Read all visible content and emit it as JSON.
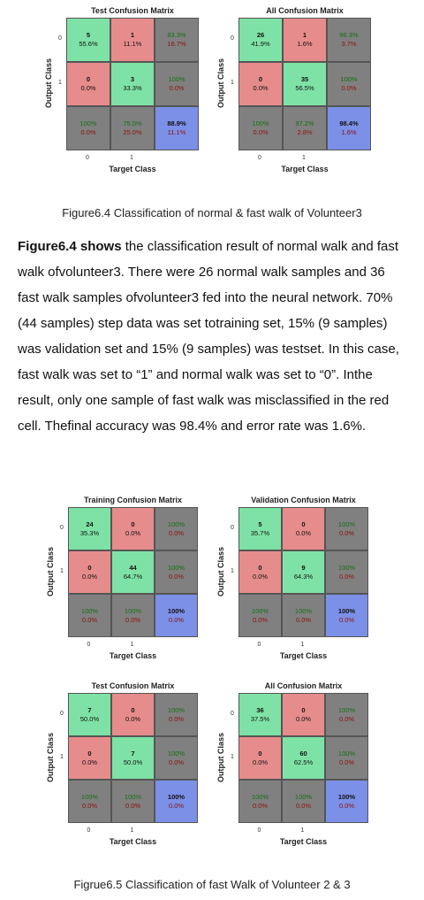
{
  "figures": [
    {
      "caption": "Figure6.4 Classification of normal & fast walk of Volunteer3",
      "matrices": [
        {
          "title": "Test Confusion Matrix",
          "ylabel": "Output Class",
          "xlabel": "Target Class",
          "yticks": [
            "0",
            "1"
          ],
          "xticks": [
            "0",
            "1"
          ],
          "cells": [
            [
              [
                "5",
                "55.6%"
              ],
              [
                "1",
                "11.1%"
              ],
              [
                "83.3%",
                "16.7%"
              ]
            ],
            [
              [
                "0",
                "0.0%"
              ],
              [
                "3",
                "33.3%"
              ],
              [
                "100%",
                "0.0%"
              ]
            ],
            [
              [
                "100%",
                "0.0%"
              ],
              [
                "75.0%",
                "25.0%"
              ],
              [
                "88.9%",
                "11.1%"
              ]
            ]
          ]
        },
        {
          "title": "All Confusion Matrix",
          "ylabel": "Output Class",
          "xlabel": "Target Class",
          "yticks": [
            "0",
            "1"
          ],
          "xticks": [
            "0",
            "1"
          ],
          "cells": [
            [
              [
                "26",
                "41.9%"
              ],
              [
                "1",
                "1.6%"
              ],
              [
                "96.3%",
                "3.7%"
              ]
            ],
            [
              [
                "0",
                "0.0%"
              ],
              [
                "35",
                "56.5%"
              ],
              [
                "100%",
                "0.0%"
              ]
            ],
            [
              [
                "100%",
                "0.0%"
              ],
              [
                "97.2%",
                "2.8%"
              ],
              [
                "98.4%",
                "1.6%"
              ]
            ]
          ]
        }
      ]
    },
    {
      "caption": "Figrue6.5 Classification of fast Walk of Volunteer 2 & 3",
      "matrices": [
        {
          "title": "Training Confusion Matrix",
          "ylabel": "Output Class",
          "xlabel": "Target Class",
          "yticks": [
            "0",
            "1"
          ],
          "xticks": [
            "0",
            "1"
          ],
          "cells": [
            [
              [
                "24",
                "35.3%"
              ],
              [
                "0",
                "0.0%"
              ],
              [
                "100%",
                "0.0%"
              ]
            ],
            [
              [
                "0",
                "0.0%"
              ],
              [
                "44",
                "64.7%"
              ],
              [
                "100%",
                "0.0%"
              ]
            ],
            [
              [
                "100%",
                "0.0%"
              ],
              [
                "100%",
                "0.0%"
              ],
              [
                "100%",
                "0.0%"
              ]
            ]
          ]
        },
        {
          "title": "Validation Confusion Matrix",
          "ylabel": "Output Class",
          "xlabel": "Target Class",
          "yticks": [
            "0",
            "1"
          ],
          "xticks": [
            "0",
            "1"
          ],
          "cells": [
            [
              [
                "5",
                "35.7%"
              ],
              [
                "0",
                "0.0%"
              ],
              [
                "100%",
                "0.0%"
              ]
            ],
            [
              [
                "0",
                "0.0%"
              ],
              [
                "9",
                "64.3%"
              ],
              [
                "100%",
                "0.0%"
              ]
            ],
            [
              [
                "100%",
                "0.0%"
              ],
              [
                "100%",
                "0.0%"
              ],
              [
                "100%",
                "0.0%"
              ]
            ]
          ]
        },
        {
          "title": "Test Confusion Matrix",
          "ylabel": "Output Class",
          "xlabel": "Target Class",
          "yticks": [
            "0",
            "1"
          ],
          "xticks": [
            "0",
            "1"
          ],
          "cells": [
            [
              [
                "7",
                "50.0%"
              ],
              [
                "0",
                "0.0%"
              ],
              [
                "100%",
                "0.0%"
              ]
            ],
            [
              [
                "0",
                "0.0%"
              ],
              [
                "7",
                "50.0%"
              ],
              [
                "100%",
                "0.0%"
              ]
            ],
            [
              [
                "100%",
                "0.0%"
              ],
              [
                "100%",
                "0.0%"
              ],
              [
                "100%",
                "0.0%"
              ]
            ]
          ]
        },
        {
          "title": "All Confusion Matrix",
          "ylabel": "Output Class",
          "xlabel": "Target Class",
          "yticks": [
            "0",
            "1"
          ],
          "xticks": [
            "0",
            "1"
          ],
          "cells": [
            [
              [
                "36",
                "37.5%"
              ],
              [
                "0",
                "0.0%"
              ],
              [
                "100%",
                "0.0%"
              ]
            ],
            [
              [
                "0",
                "0.0%"
              ],
              [
                "60",
                "62.5%"
              ],
              [
                "100%",
                "0.0%"
              ]
            ],
            [
              [
                "100%",
                "0.0%"
              ],
              [
                "100%",
                "0.0%"
              ],
              [
                "100%",
                "0.0%"
              ]
            ]
          ]
        }
      ]
    }
  ],
  "paragraph": {
    "lead": "Figure6.4 shows",
    "text": " the classification result of normal walk and fast walk ofvolunteer3. There were 26 normal walk samples and 36 fast walk samples ofvolunteer3 fed into the neural network. 70% (44 samples) step data was set totraining set, 15% (9 samples) was validation set and 15% (9 samples) was testset. In this case, fast walk was set to “1” and normal walk was set to “0”. Inthe result, only one sample of fast walk was misclassified in the red cell. Thefinal accuracy was 98.4% and error rate was 1.6%."
  }
}
